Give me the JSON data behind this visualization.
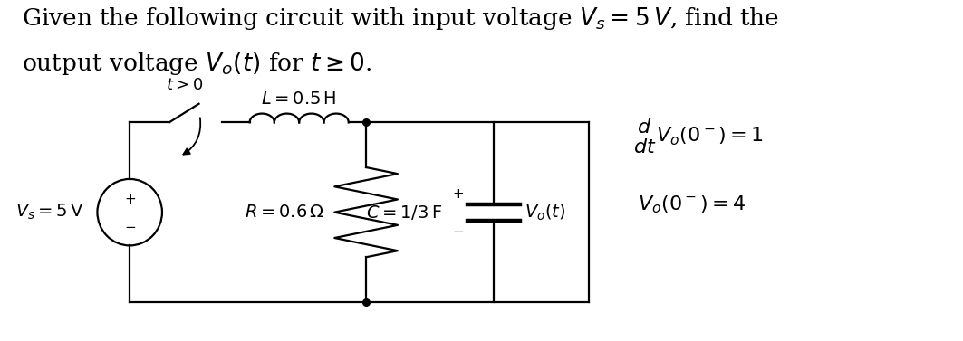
{
  "title_line1": "Given the following circuit with input voltage $V_s = 5\\,V$, find the",
  "title_line2": "output voltage $V_o(t)$ for $t \\geq 0$.",
  "label_t_gt_0": "$t > 0$",
  "label_L": "$L = 0.5\\,\\mathrm{H}$",
  "label_R": "$R = 0.6\\,\\Omega$",
  "label_C": "$C = 1/3\\,\\mathrm{F}$",
  "label_Vs": "$V_s = 5\\,\\mathrm{V}$",
  "label_Vo": "$V_o(t)$",
  "bg_color": "#ffffff",
  "line_color": "#000000",
  "font_size_title": 19,
  "font_size_labels": 14,
  "font_size_ic": 16
}
